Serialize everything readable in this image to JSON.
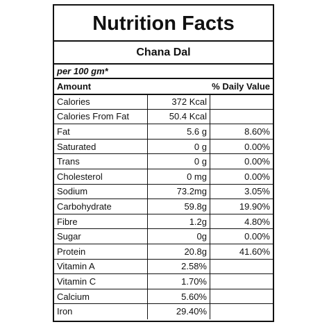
{
  "label": {
    "title": "Nutrition Facts",
    "product": "Chana Dal",
    "serving": "per 100 gm*",
    "header": {
      "amount": "Amount",
      "daily_value": "% Daily Value"
    },
    "rows": [
      {
        "name": "Calories",
        "amount": "372 Kcal",
        "dv": ""
      },
      {
        "name": "Calories From Fat",
        "amount": "50.4 Kcal",
        "dv": ""
      },
      {
        "name": "Fat",
        "amount": "5.6 g",
        "dv": "8.60%"
      },
      {
        "name": "Saturated",
        "amount": "0 g",
        "dv": "0.00%"
      },
      {
        "name": "Trans",
        "amount": "0 g",
        "dv": "0.00%"
      },
      {
        "name": "Cholesterol",
        "amount": "0 mg",
        "dv": "0.00%"
      },
      {
        "name": "Sodium",
        "amount": "73.2mg",
        "dv": "3.05%"
      },
      {
        "name": "Carbohydrate",
        "amount": "59.8g",
        "dv": "19.90%"
      },
      {
        "name": "Fibre",
        "amount": "1.2g",
        "dv": "4.80%"
      },
      {
        "name": "Sugar",
        "amount": "0g",
        "dv": "0.00%"
      },
      {
        "name": "Protein",
        "amount": "20.8g",
        "dv": "41.60%"
      },
      {
        "name": "Vitamin A",
        "amount": "2.58%",
        "dv": ""
      },
      {
        "name": "Vitamin C",
        "amount": "1.70%",
        "dv": ""
      },
      {
        "name": "Calcium",
        "amount": "5.60%",
        "dv": ""
      },
      {
        "name": "Iron",
        "amount": "29.40%",
        "dv": ""
      }
    ]
  }
}
